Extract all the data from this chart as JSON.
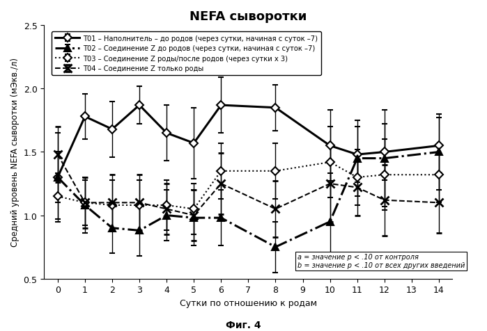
{
  "title": "NEFA сыворотки",
  "xlabel": "Сутки по отношению к родам",
  "ylabel": "Средний уровень NEFA сыворотки (мЭкв./л)",
  "caption": "Фиг. 4",
  "annotation1": "a = значение p < .10 от контроля",
  "annotation2": "b = значение p < .10 от всех других введений",
  "xlim": [
    -0.5,
    14.5
  ],
  "ylim": [
    0.5,
    2.5
  ],
  "yticks": [
    0.5,
    1.0,
    1.5,
    2.0,
    2.5
  ],
  "xticks": [
    0,
    1,
    2,
    3,
    4,
    5,
    6,
    7,
    8,
    9,
    10,
    11,
    12,
    13,
    14
  ],
  "T01": {
    "label": "T01 – Наполнитель – до родов (через сутки, начиная с суток –7)",
    "x": [
      0,
      1,
      2,
      3,
      4,
      5,
      6,
      8,
      10,
      11,
      12,
      14
    ],
    "y": [
      1.3,
      1.78,
      1.68,
      1.87,
      1.65,
      1.57,
      1.87,
      1.85,
      1.55,
      1.48,
      1.5,
      1.55
    ],
    "yerr": [
      0.35,
      0.18,
      0.22,
      0.15,
      0.22,
      0.28,
      0.22,
      0.18,
      0.28,
      0.22,
      0.22,
      0.22
    ],
    "linestyle": "-",
    "marker": "D",
    "linewidth": 2.2,
    "markersize": 6,
    "markerfacecolor": "white"
  },
  "T02": {
    "label": "T02 – Соединение Z до родов (через сутки, начиная с суток –7)",
    "x": [
      0,
      1,
      2,
      3,
      4,
      5,
      6,
      8,
      10,
      11,
      12,
      14
    ],
    "y": [
      1.3,
      1.08,
      0.9,
      0.88,
      1.0,
      0.98,
      0.98,
      0.75,
      0.95,
      1.45,
      1.45,
      1.5
    ],
    "yerr": [
      0.2,
      0.22,
      0.2,
      0.2,
      0.2,
      0.22,
      0.22,
      0.2,
      0.38,
      0.3,
      0.38,
      0.3
    ],
    "linestyle": "-.",
    "marker": "^",
    "linewidth": 2.2,
    "markersize": 7,
    "markerfacecolor": "black"
  },
  "T03": {
    "label": "T03 – Соединение Z роды/после родов (через сутки х 3)",
    "x": [
      0,
      1,
      2,
      3,
      4,
      5,
      6,
      8,
      10,
      11,
      12,
      14
    ],
    "y": [
      1.15,
      1.1,
      1.08,
      1.08,
      1.08,
      1.05,
      1.35,
      1.35,
      1.42,
      1.3,
      1.32,
      1.32
    ],
    "yerr": [
      0.18,
      0.18,
      0.2,
      0.2,
      0.2,
      0.2,
      0.22,
      0.22,
      0.28,
      0.22,
      0.28,
      0.22
    ],
    "linestyle": ":",
    "marker": "D",
    "linewidth": 1.5,
    "markersize": 6,
    "markerfacecolor": "white"
  },
  "T04": {
    "label": "T04 – Соединение Z только роды",
    "x": [
      0,
      1,
      2,
      3,
      4,
      5,
      6,
      8,
      10,
      11,
      12,
      14
    ],
    "y": [
      1.48,
      1.1,
      1.1,
      1.1,
      1.05,
      1.0,
      1.25,
      1.05,
      1.25,
      1.22,
      1.12,
      1.1
    ],
    "yerr": [
      0.22,
      0.2,
      0.22,
      0.22,
      0.2,
      0.2,
      0.24,
      0.22,
      0.3,
      0.22,
      0.28,
      0.24
    ],
    "linestyle": "--",
    "marker": "x",
    "linewidth": 1.5,
    "markersize": 8,
    "markerfacecolor": "black"
  }
}
